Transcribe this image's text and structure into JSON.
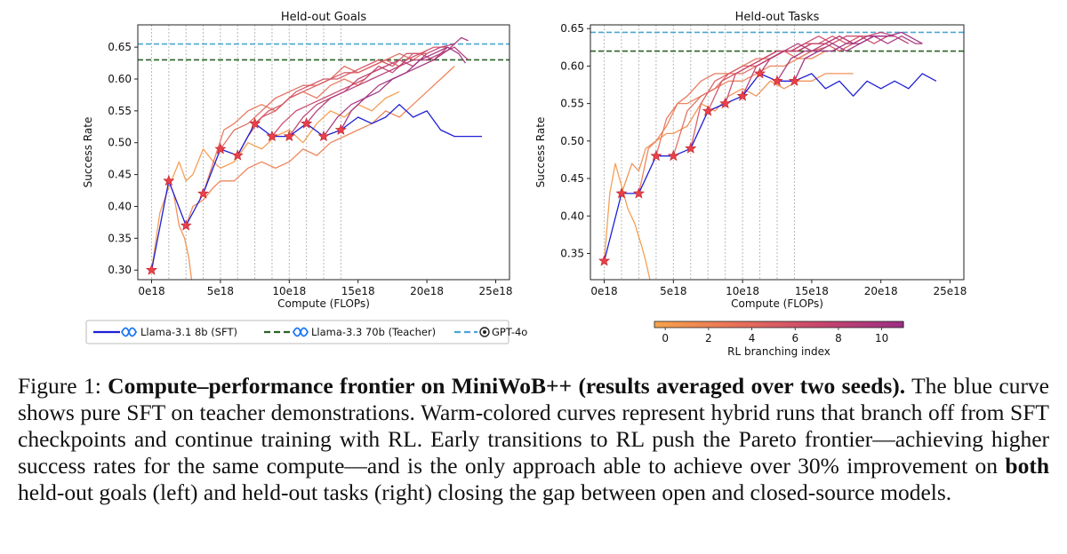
{
  "colors": {
    "sft": "#1f1fd6",
    "teacher": "#2b6127",
    "gpt4o": "#4aa5d4",
    "star_fill": "#e8414a",
    "star_edge": "#c0232b",
    "cmap": [
      "#f6a14a",
      "#e8705a",
      "#c8456d",
      "#9c2f82"
    ]
  },
  "legend": {
    "sft": "Llama-3.1 8b (SFT)",
    "teacher": "Llama-3.3 70b (Teacher)",
    "gpt4o": "GPT-4o"
  },
  "colorbar": {
    "label": "RL branching index",
    "ticks": [
      "0",
      "2",
      "4",
      "6",
      "8",
      "10"
    ],
    "range": [
      -0.5,
      11
    ]
  },
  "chart_data": [
    {
      "type": "line",
      "title": "Held-out Goals",
      "xlabel": "Compute (FLOPs)",
      "ylabel": "Success Rate",
      "xlim": [
        -1,
        26
      ],
      "ylim": [
        0.285,
        0.685
      ],
      "xticks": [
        0,
        5,
        10,
        15,
        20,
        25
      ],
      "xtick_labels": [
        "0e18",
        "5e18",
        "10e18",
        "15e18",
        "20e18",
        "25e18"
      ],
      "yticks": [
        0.3,
        0.35,
        0.4,
        0.45,
        0.5,
        0.55,
        0.6,
        0.65
      ],
      "ytick_labels": [
        "0.30",
        "0.35",
        "0.40",
        "0.45",
        "0.50",
        "0.55",
        "0.60",
        "0.65"
      ],
      "vlines": [
        0,
        1.25,
        2.5,
        3.75,
        5,
        6.25,
        7.5,
        8.75,
        10,
        11.25,
        12.5,
        13.75
      ],
      "teacher": 0.63,
      "gpt4o": 0.655,
      "sft": {
        "x": [
          0,
          1.25,
          2.5,
          3.75,
          5,
          6.25,
          7.5,
          8.75,
          10,
          11.25,
          12.5,
          13.75,
          15,
          16,
          17,
          18,
          19,
          20,
          21,
          22,
          23,
          24
        ],
        "y": [
          0.3,
          0.44,
          0.37,
          0.42,
          0.49,
          0.48,
          0.53,
          0.51,
          0.51,
          0.53,
          0.51,
          0.52,
          0.54,
          0.53,
          0.54,
          0.56,
          0.54,
          0.55,
          0.52,
          0.51,
          0.51,
          0.51
        ]
      },
      "frontier": {
        "x": [
          0,
          1.25,
          2.5,
          3.75,
          5,
          6.25,
          7.5,
          8.75,
          10,
          11.25,
          12.5,
          13.75
        ],
        "y": [
          0.3,
          0.44,
          0.37,
          0.42,
          0.49,
          0.48,
          0.53,
          0.51,
          0.51,
          0.53,
          0.51,
          0.52
        ]
      },
      "rl_runs": [
        {
          "branch": 0,
          "x": [
            0,
            0.6,
            1.25,
            2.0,
            2.5,
            3.0,
            3.75,
            4.5,
            5,
            6,
            7,
            8,
            9,
            10,
            11,
            12,
            13,
            14,
            15,
            16,
            17,
            18
          ],
          "y": [
            0.3,
            0.39,
            0.43,
            0.47,
            0.44,
            0.45,
            0.49,
            0.47,
            0.46,
            0.47,
            0.5,
            0.49,
            0.51,
            0.52,
            0.5,
            0.53,
            0.55,
            0.54,
            0.56,
            0.55,
            0.57,
            0.58
          ]
        },
        {
          "branch": 1,
          "x": [
            1.25,
            1.6,
            2.0,
            2.4,
            2.7,
            2.9
          ],
          "y": [
            0.44,
            0.42,
            0.37,
            0.35,
            0.32,
            0.285
          ]
        },
        {
          "branch": 2,
          "x": [
            2.5,
            3.0,
            3.75,
            4.5,
            5,
            6,
            7,
            8,
            9,
            10,
            11,
            12,
            13,
            14,
            15,
            16,
            17,
            18,
            19,
            20,
            21,
            22
          ],
          "y": [
            0.37,
            0.4,
            0.41,
            0.43,
            0.44,
            0.44,
            0.46,
            0.47,
            0.46,
            0.47,
            0.49,
            0.48,
            0.5,
            0.51,
            0.52,
            0.53,
            0.55,
            0.54,
            0.56,
            0.58,
            0.6,
            0.62
          ]
        },
        {
          "branch": 3,
          "x": [
            3.75,
            4.5,
            5.25,
            6,
            7,
            8,
            9,
            10,
            11,
            12,
            13,
            14,
            15,
            16,
            17
          ],
          "y": [
            0.42,
            0.47,
            0.52,
            0.53,
            0.55,
            0.56,
            0.55,
            0.57,
            0.58,
            0.57,
            0.59,
            0.6,
            0.59,
            0.61,
            0.62
          ]
        },
        {
          "branch": 4,
          "x": [
            5,
            6,
            7,
            8,
            9,
            10,
            11,
            12,
            13,
            14,
            15,
            16,
            17,
            18,
            19,
            20
          ],
          "y": [
            0.49,
            0.52,
            0.53,
            0.55,
            0.57,
            0.58,
            0.59,
            0.59,
            0.6,
            0.62,
            0.61,
            0.62,
            0.63,
            0.64,
            0.63,
            0.645
          ]
        },
        {
          "branch": 5,
          "x": [
            6.25,
            7,
            8,
            9,
            10,
            11,
            12,
            13,
            14,
            15,
            16,
            17,
            18,
            19,
            20
          ],
          "y": [
            0.48,
            0.51,
            0.54,
            0.55,
            0.57,
            0.58,
            0.59,
            0.6,
            0.61,
            0.61,
            0.62,
            0.63,
            0.62,
            0.64,
            0.64
          ]
        },
        {
          "branch": 6,
          "x": [
            7.5,
            8.5,
            9.5,
            10.5,
            11.5,
            12.5,
            13.5,
            14.5,
            15.5,
            16.5,
            17.5,
            18.5,
            19.5,
            20.5,
            21.5
          ],
          "y": [
            0.53,
            0.55,
            0.56,
            0.58,
            0.59,
            0.6,
            0.6,
            0.61,
            0.62,
            0.63,
            0.62,
            0.64,
            0.64,
            0.65,
            0.65
          ]
        },
        {
          "branch": 7,
          "x": [
            8.75,
            9.5,
            10.5,
            11.5,
            12.5,
            13.5,
            14.5,
            15.5,
            16.5,
            17.5,
            18.5,
            19.5,
            20.5,
            21.5
          ],
          "y": [
            0.51,
            0.53,
            0.55,
            0.56,
            0.57,
            0.58,
            0.59,
            0.6,
            0.62,
            0.61,
            0.63,
            0.64,
            0.63,
            0.65
          ]
        },
        {
          "branch": 8,
          "x": [
            10,
            11,
            12,
            13,
            14,
            15,
            16,
            17,
            18,
            19,
            20,
            21,
            22
          ],
          "y": [
            0.51,
            0.54,
            0.56,
            0.57,
            0.58,
            0.6,
            0.61,
            0.62,
            0.63,
            0.62,
            0.64,
            0.65,
            0.655
          ]
        },
        {
          "branch": 9,
          "x": [
            11.25,
            12,
            13,
            14,
            15,
            16,
            17,
            18,
            19,
            20,
            21,
            22,
            23
          ],
          "y": [
            0.53,
            0.55,
            0.57,
            0.58,
            0.59,
            0.6,
            0.61,
            0.62,
            0.63,
            0.63,
            0.64,
            0.65,
            0.63
          ]
        },
        {
          "branch": 10,
          "x": [
            12.5,
            13.5,
            14.5,
            15.5,
            16.5,
            17.5,
            18.5,
            19.5,
            20.5,
            21.5,
            22.5,
            23
          ],
          "y": [
            0.51,
            0.54,
            0.56,
            0.57,
            0.59,
            0.6,
            0.61,
            0.62,
            0.63,
            0.645,
            0.665,
            0.66
          ]
        },
        {
          "branch": 11,
          "x": [
            13.75,
            14.5,
            15.5,
            16.5,
            17.5,
            18.5,
            19.5,
            20.5,
            21.5,
            22.3,
            22.8
          ],
          "y": [
            0.52,
            0.55,
            0.57,
            0.58,
            0.6,
            0.61,
            0.63,
            0.64,
            0.65,
            0.64,
            0.625
          ]
        }
      ]
    },
    {
      "type": "line",
      "title": "Held-out Tasks",
      "xlabel": "Compute (FLOPs)",
      "ylabel": "Success Rate",
      "xlim": [
        -1,
        26
      ],
      "ylim": [
        0.315,
        0.655
      ],
      "xticks": [
        0,
        5,
        10,
        15,
        20,
        25
      ],
      "xtick_labels": [
        "0e18",
        "5e18",
        "10e18",
        "15e18",
        "20e18",
        "25e18"
      ],
      "yticks": [
        0.35,
        0.4,
        0.45,
        0.5,
        0.55,
        0.6,
        0.65
      ],
      "ytick_labels": [
        "0.35",
        "0.40",
        "0.45",
        "0.50",
        "0.55",
        "0.60",
        "0.65"
      ],
      "vlines": [
        0,
        1.25,
        2.5,
        3.75,
        5,
        6.25,
        7.5,
        8.75,
        10,
        11.25,
        12.5,
        13.75
      ],
      "teacher": 0.62,
      "gpt4o": 0.645,
      "sft": {
        "x": [
          0,
          1.25,
          2.5,
          3.75,
          5,
          6.25,
          7.5,
          8.75,
          10,
          11.25,
          12.5,
          13.75,
          15,
          16,
          17,
          18,
          19,
          20,
          21,
          22,
          23,
          24
        ],
        "y": [
          0.34,
          0.43,
          0.43,
          0.48,
          0.48,
          0.49,
          0.54,
          0.55,
          0.56,
          0.59,
          0.58,
          0.58,
          0.59,
          0.57,
          0.58,
          0.56,
          0.58,
          0.57,
          0.58,
          0.57,
          0.59,
          0.58
        ]
      },
      "frontier": {
        "x": [
          0,
          1.25,
          2.5,
          3.75,
          5,
          6.25,
          7.5,
          8.75,
          10,
          11.25,
          12.5,
          13.75
        ],
        "y": [
          0.34,
          0.43,
          0.43,
          0.48,
          0.48,
          0.49,
          0.54,
          0.55,
          0.56,
          0.59,
          0.58,
          0.58
        ]
      },
      "rl_runs": [
        {
          "branch": 0,
          "x": [
            0,
            0.4,
            0.8,
            1.25,
            1.7,
            2.2,
            2.7,
            3.0,
            3.3
          ],
          "y": [
            0.34,
            0.43,
            0.47,
            0.44,
            0.41,
            0.39,
            0.36,
            0.34,
            0.315
          ]
        },
        {
          "branch": 1,
          "x": [
            1.25,
            2.0,
            2.5,
            3.0,
            3.75,
            4.5,
            5,
            6,
            7,
            8,
            9,
            10,
            11,
            12,
            13,
            14,
            15,
            16,
            17,
            18
          ],
          "y": [
            0.43,
            0.47,
            0.46,
            0.49,
            0.5,
            0.51,
            0.51,
            0.52,
            0.55,
            0.54,
            0.56,
            0.57,
            0.56,
            0.58,
            0.57,
            0.58,
            0.58,
            0.59,
            0.59,
            0.59
          ]
        },
        {
          "branch": 2,
          "x": [
            2.5,
            3.2,
            3.75,
            4.5,
            5.3,
            6,
            7,
            8,
            9,
            10,
            11,
            12,
            13,
            14,
            15,
            16
          ],
          "y": [
            0.43,
            0.49,
            0.5,
            0.52,
            0.55,
            0.55,
            0.56,
            0.57,
            0.58,
            0.58,
            0.59,
            0.6,
            0.6,
            0.61,
            0.61,
            0.62
          ]
        },
        {
          "branch": 3,
          "x": [
            3.75,
            4.5,
            5.3,
            6,
            7,
            8,
            9,
            10,
            11,
            12,
            13,
            14,
            15
          ],
          "y": [
            0.48,
            0.53,
            0.55,
            0.56,
            0.58,
            0.59,
            0.59,
            0.6,
            0.61,
            0.61,
            0.62,
            0.62,
            0.63
          ]
        },
        {
          "branch": 4,
          "x": [
            5,
            6,
            7,
            8,
            9,
            10,
            11,
            12,
            13,
            14,
            15,
            16
          ],
          "y": [
            0.48,
            0.54,
            0.56,
            0.57,
            0.59,
            0.59,
            0.6,
            0.61,
            0.62,
            0.61,
            0.62,
            0.625
          ]
        },
        {
          "branch": 5,
          "x": [
            6.25,
            7,
            8,
            9,
            10,
            11,
            12,
            13,
            14,
            15,
            16,
            17,
            18
          ],
          "y": [
            0.49,
            0.55,
            0.58,
            0.59,
            0.6,
            0.6,
            0.61,
            0.62,
            0.62,
            0.63,
            0.63,
            0.62,
            0.63
          ]
        },
        {
          "branch": 6,
          "x": [
            7.5,
            8.5,
            9.5,
            10.5,
            11.5,
            12.5,
            13.5,
            14.5,
            15.5,
            16.5,
            17.5,
            18.5,
            19.5
          ],
          "y": [
            0.54,
            0.58,
            0.59,
            0.6,
            0.61,
            0.62,
            0.62,
            0.63,
            0.63,
            0.64,
            0.63,
            0.64,
            0.64
          ]
        },
        {
          "branch": 7,
          "x": [
            8.75,
            9.5,
            10.5,
            11.5,
            12.5,
            13.5,
            14.5,
            15.5,
            16.5,
            17.5,
            18.5,
            19.5,
            20.5
          ],
          "y": [
            0.55,
            0.59,
            0.6,
            0.61,
            0.62,
            0.62,
            0.63,
            0.64,
            0.63,
            0.64,
            0.64,
            0.63,
            0.64
          ]
        },
        {
          "branch": 8,
          "x": [
            10,
            11,
            12,
            13,
            14,
            15,
            16,
            17,
            18,
            19,
            20,
            21
          ],
          "y": [
            0.56,
            0.6,
            0.61,
            0.62,
            0.62,
            0.63,
            0.63,
            0.64,
            0.63,
            0.64,
            0.645,
            0.64
          ]
        },
        {
          "branch": 9,
          "x": [
            11.25,
            12,
            13,
            14,
            15,
            16,
            17,
            18,
            19,
            20,
            21,
            22
          ],
          "y": [
            0.59,
            0.61,
            0.62,
            0.63,
            0.62,
            0.63,
            0.64,
            0.63,
            0.64,
            0.64,
            0.64,
            0.63
          ]
        },
        {
          "branch": 10,
          "x": [
            12.5,
            13.5,
            14.5,
            15.5,
            16.5,
            17.5,
            18.5,
            19.5,
            20.5,
            21.5,
            22.5,
            23
          ],
          "y": [
            0.58,
            0.61,
            0.62,
            0.62,
            0.63,
            0.62,
            0.63,
            0.64,
            0.63,
            0.64,
            0.63,
            0.63
          ]
        },
        {
          "branch": 11,
          "x": [
            13.75,
            14.5,
            15.5,
            16.5,
            17.5,
            18.5,
            19.5,
            20.5,
            21.5,
            22.5,
            23
          ],
          "y": [
            0.58,
            0.61,
            0.62,
            0.62,
            0.63,
            0.63,
            0.64,
            0.64,
            0.645,
            0.635,
            0.63
          ]
        }
      ]
    }
  ],
  "caption": {
    "label": "Figure 1: ",
    "bold": "Compute–performance frontier on MiniWoB++ (results averaged over two seeds).",
    "text1": " The blue curve shows pure SFT on teacher demonstrations. Warm-colored curves represent hybrid runs that branch off from SFT checkpoints and continue training with RL. Early transitions to RL push the Pareto frontier—achieving higher success rates for the same compute—and is the only approach able to achieve over 30% improvement on ",
    "bold2": "both",
    "text2": " held-out goals (left) and held-out tasks (right) closing the gap between open and closed-source models."
  }
}
